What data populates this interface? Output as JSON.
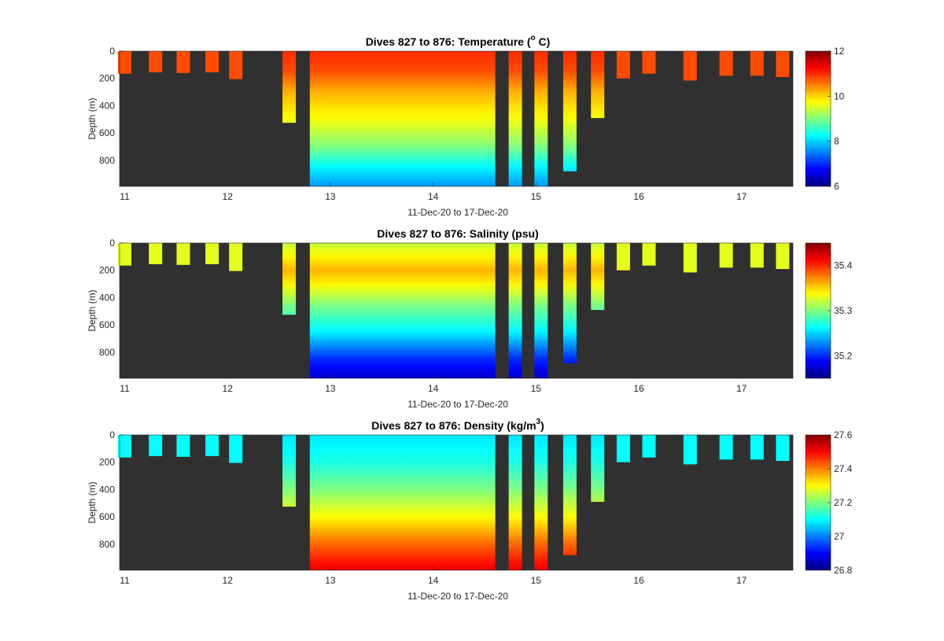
{
  "chart_data": [
    {
      "type": "heatmap",
      "title": "Dives 827 to 876: Temperature (",
      "title_sup": "o",
      "title_tail": " C)",
      "xlabel": "11-Dec-20 to 17-Dec-20",
      "ylabel": "Depth (m)",
      "xlim": [
        10.95,
        17.5
      ],
      "ylim": [
        0,
        990
      ],
      "x_ticks": [
        "11",
        "12",
        "13",
        "14",
        "15",
        "16",
        "17"
      ],
      "y_ticks": [
        "0",
        "200",
        "400",
        "600",
        "800"
      ],
      "colorbar": {
        "min": 6,
        "max": 12,
        "ticks": [
          "6",
          "8",
          "10",
          "12"
        ]
      },
      "colormap": "jet",
      "background": "#303030",
      "profiles": [
        {
          "day": 11.0,
          "max_depth": 165
        },
        {
          "day": 11.3,
          "max_depth": 155
        },
        {
          "day": 11.57,
          "max_depth": 160
        },
        {
          "day": 11.85,
          "max_depth": 155
        },
        {
          "day": 12.08,
          "max_depth": 205
        },
        {
          "day": 12.6,
          "max_depth": 525
        },
        {
          "day": 14.8,
          "max_depth": 990
        },
        {
          "day": 15.05,
          "max_depth": 990
        },
        {
          "day": 15.33,
          "max_depth": 880
        },
        {
          "day": 15.6,
          "max_depth": 490
        },
        {
          "day": 15.85,
          "max_depth": 200
        },
        {
          "day": 16.1,
          "max_depth": 165
        },
        {
          "day": 16.5,
          "max_depth": 215
        },
        {
          "day": 16.85,
          "max_depth": 180
        },
        {
          "day": 17.15,
          "max_depth": 180
        },
        {
          "day": 17.4,
          "max_depth": 190
        }
      ],
      "continuous": {
        "start_day": 12.8,
        "end_day": 14.6,
        "max_depth": 990
      },
      "profile_values": [
        [
          [
            0,
            10.8
          ],
          [
            1000,
            10.8
          ]
        ],
        [
          [
            0,
            11.0
          ],
          [
            150,
            10.8
          ],
          [
            300,
            10.2
          ],
          [
            500,
            9.7
          ],
          [
            700,
            9.0
          ],
          [
            850,
            8.2
          ],
          [
            1000,
            7.6
          ]
        ]
      ]
    },
    {
      "type": "heatmap",
      "title": "Dives 827 to 876: Salinity (psu)",
      "xlabel": "11-Dec-20 to 17-Dec-20",
      "ylabel": "Depth (m)",
      "xlim": [
        10.95,
        17.5
      ],
      "ylim": [
        0,
        990
      ],
      "x_ticks": [
        "11",
        "12",
        "13",
        "14",
        "15",
        "16",
        "17"
      ],
      "y_ticks": [
        "0",
        "200",
        "400",
        "600",
        "800"
      ],
      "colorbar": {
        "min": 35.15,
        "max": 35.45,
        "ticks": [
          "35.2",
          "35.3",
          "35.4"
        ],
        "tick_values": [
          35.2,
          35.3,
          35.4
        ]
      },
      "colormap": "jet",
      "background": "#303030",
      "profiles": [
        {
          "day": 11.0,
          "max_depth": 165
        },
        {
          "day": 11.3,
          "max_depth": 155
        },
        {
          "day": 11.57,
          "max_depth": 160
        },
        {
          "day": 11.85,
          "max_depth": 155
        },
        {
          "day": 12.08,
          "max_depth": 205
        },
        {
          "day": 12.6,
          "max_depth": 525
        },
        {
          "day": 14.8,
          "max_depth": 990
        },
        {
          "day": 15.05,
          "max_depth": 990
        },
        {
          "day": 15.33,
          "max_depth": 880
        },
        {
          "day": 15.6,
          "max_depth": 490
        },
        {
          "day": 15.85,
          "max_depth": 200
        },
        {
          "day": 16.1,
          "max_depth": 165
        },
        {
          "day": 16.5,
          "max_depth": 215
        },
        {
          "day": 16.85,
          "max_depth": 180
        },
        {
          "day": 17.15,
          "max_depth": 180
        },
        {
          "day": 17.4,
          "max_depth": 190
        }
      ],
      "continuous": {
        "start_day": 12.8,
        "end_day": 14.6,
        "max_depth": 990
      },
      "profile_values": [
        [
          [
            0,
            35.33
          ],
          [
            1000,
            35.33
          ]
        ],
        [
          [
            0,
            35.32
          ],
          [
            200,
            35.36
          ],
          [
            300,
            35.34
          ],
          [
            450,
            35.3
          ],
          [
            650,
            35.26
          ],
          [
            850,
            35.2
          ],
          [
            1000,
            35.17
          ]
        ]
      ]
    },
    {
      "type": "heatmap",
      "title": "Dives 827 to 876: Density (kg/m",
      "title_sup": "3",
      "title_tail": ")",
      "xlabel": "11-Dec-20 to 17-Dec-20",
      "ylabel": "Depth (m)",
      "xlim": [
        10.95,
        17.5
      ],
      "ylim": [
        0,
        990
      ],
      "x_ticks": [
        "11",
        "12",
        "13",
        "14",
        "15",
        "16",
        "17"
      ],
      "y_ticks": [
        "0",
        "200",
        "400",
        "600",
        "800"
      ],
      "colorbar": {
        "min": 26.8,
        "max": 27.6,
        "ticks": [
          "26.8",
          "27",
          "27.2",
          "27.4",
          "27.6"
        ]
      },
      "colormap": "jet",
      "background": "#303030",
      "profiles": [
        {
          "day": 11.0,
          "max_depth": 165
        },
        {
          "day": 11.3,
          "max_depth": 155
        },
        {
          "day": 11.57,
          "max_depth": 160
        },
        {
          "day": 11.85,
          "max_depth": 155
        },
        {
          "day": 12.08,
          "max_depth": 205
        },
        {
          "day": 12.6,
          "max_depth": 525
        },
        {
          "day": 14.8,
          "max_depth": 990
        },
        {
          "day": 15.05,
          "max_depth": 990
        },
        {
          "day": 15.33,
          "max_depth": 880
        },
        {
          "day": 15.6,
          "max_depth": 490
        },
        {
          "day": 15.85,
          "max_depth": 200
        },
        {
          "day": 16.1,
          "max_depth": 165
        },
        {
          "day": 16.5,
          "max_depth": 215
        },
        {
          "day": 16.85,
          "max_depth": 180
        },
        {
          "day": 17.15,
          "max_depth": 180
        },
        {
          "day": 17.4,
          "max_depth": 190
        }
      ],
      "continuous": {
        "start_day": 12.8,
        "end_day": 14.6,
        "max_depth": 990
      },
      "profile_values": [
        [
          [
            0,
            27.1
          ],
          [
            1000,
            27.1
          ]
        ],
        [
          [
            0,
            27.08
          ],
          [
            200,
            27.12
          ],
          [
            400,
            27.2
          ],
          [
            600,
            27.3
          ],
          [
            800,
            27.42
          ],
          [
            1000,
            27.52
          ]
        ]
      ]
    }
  ]
}
